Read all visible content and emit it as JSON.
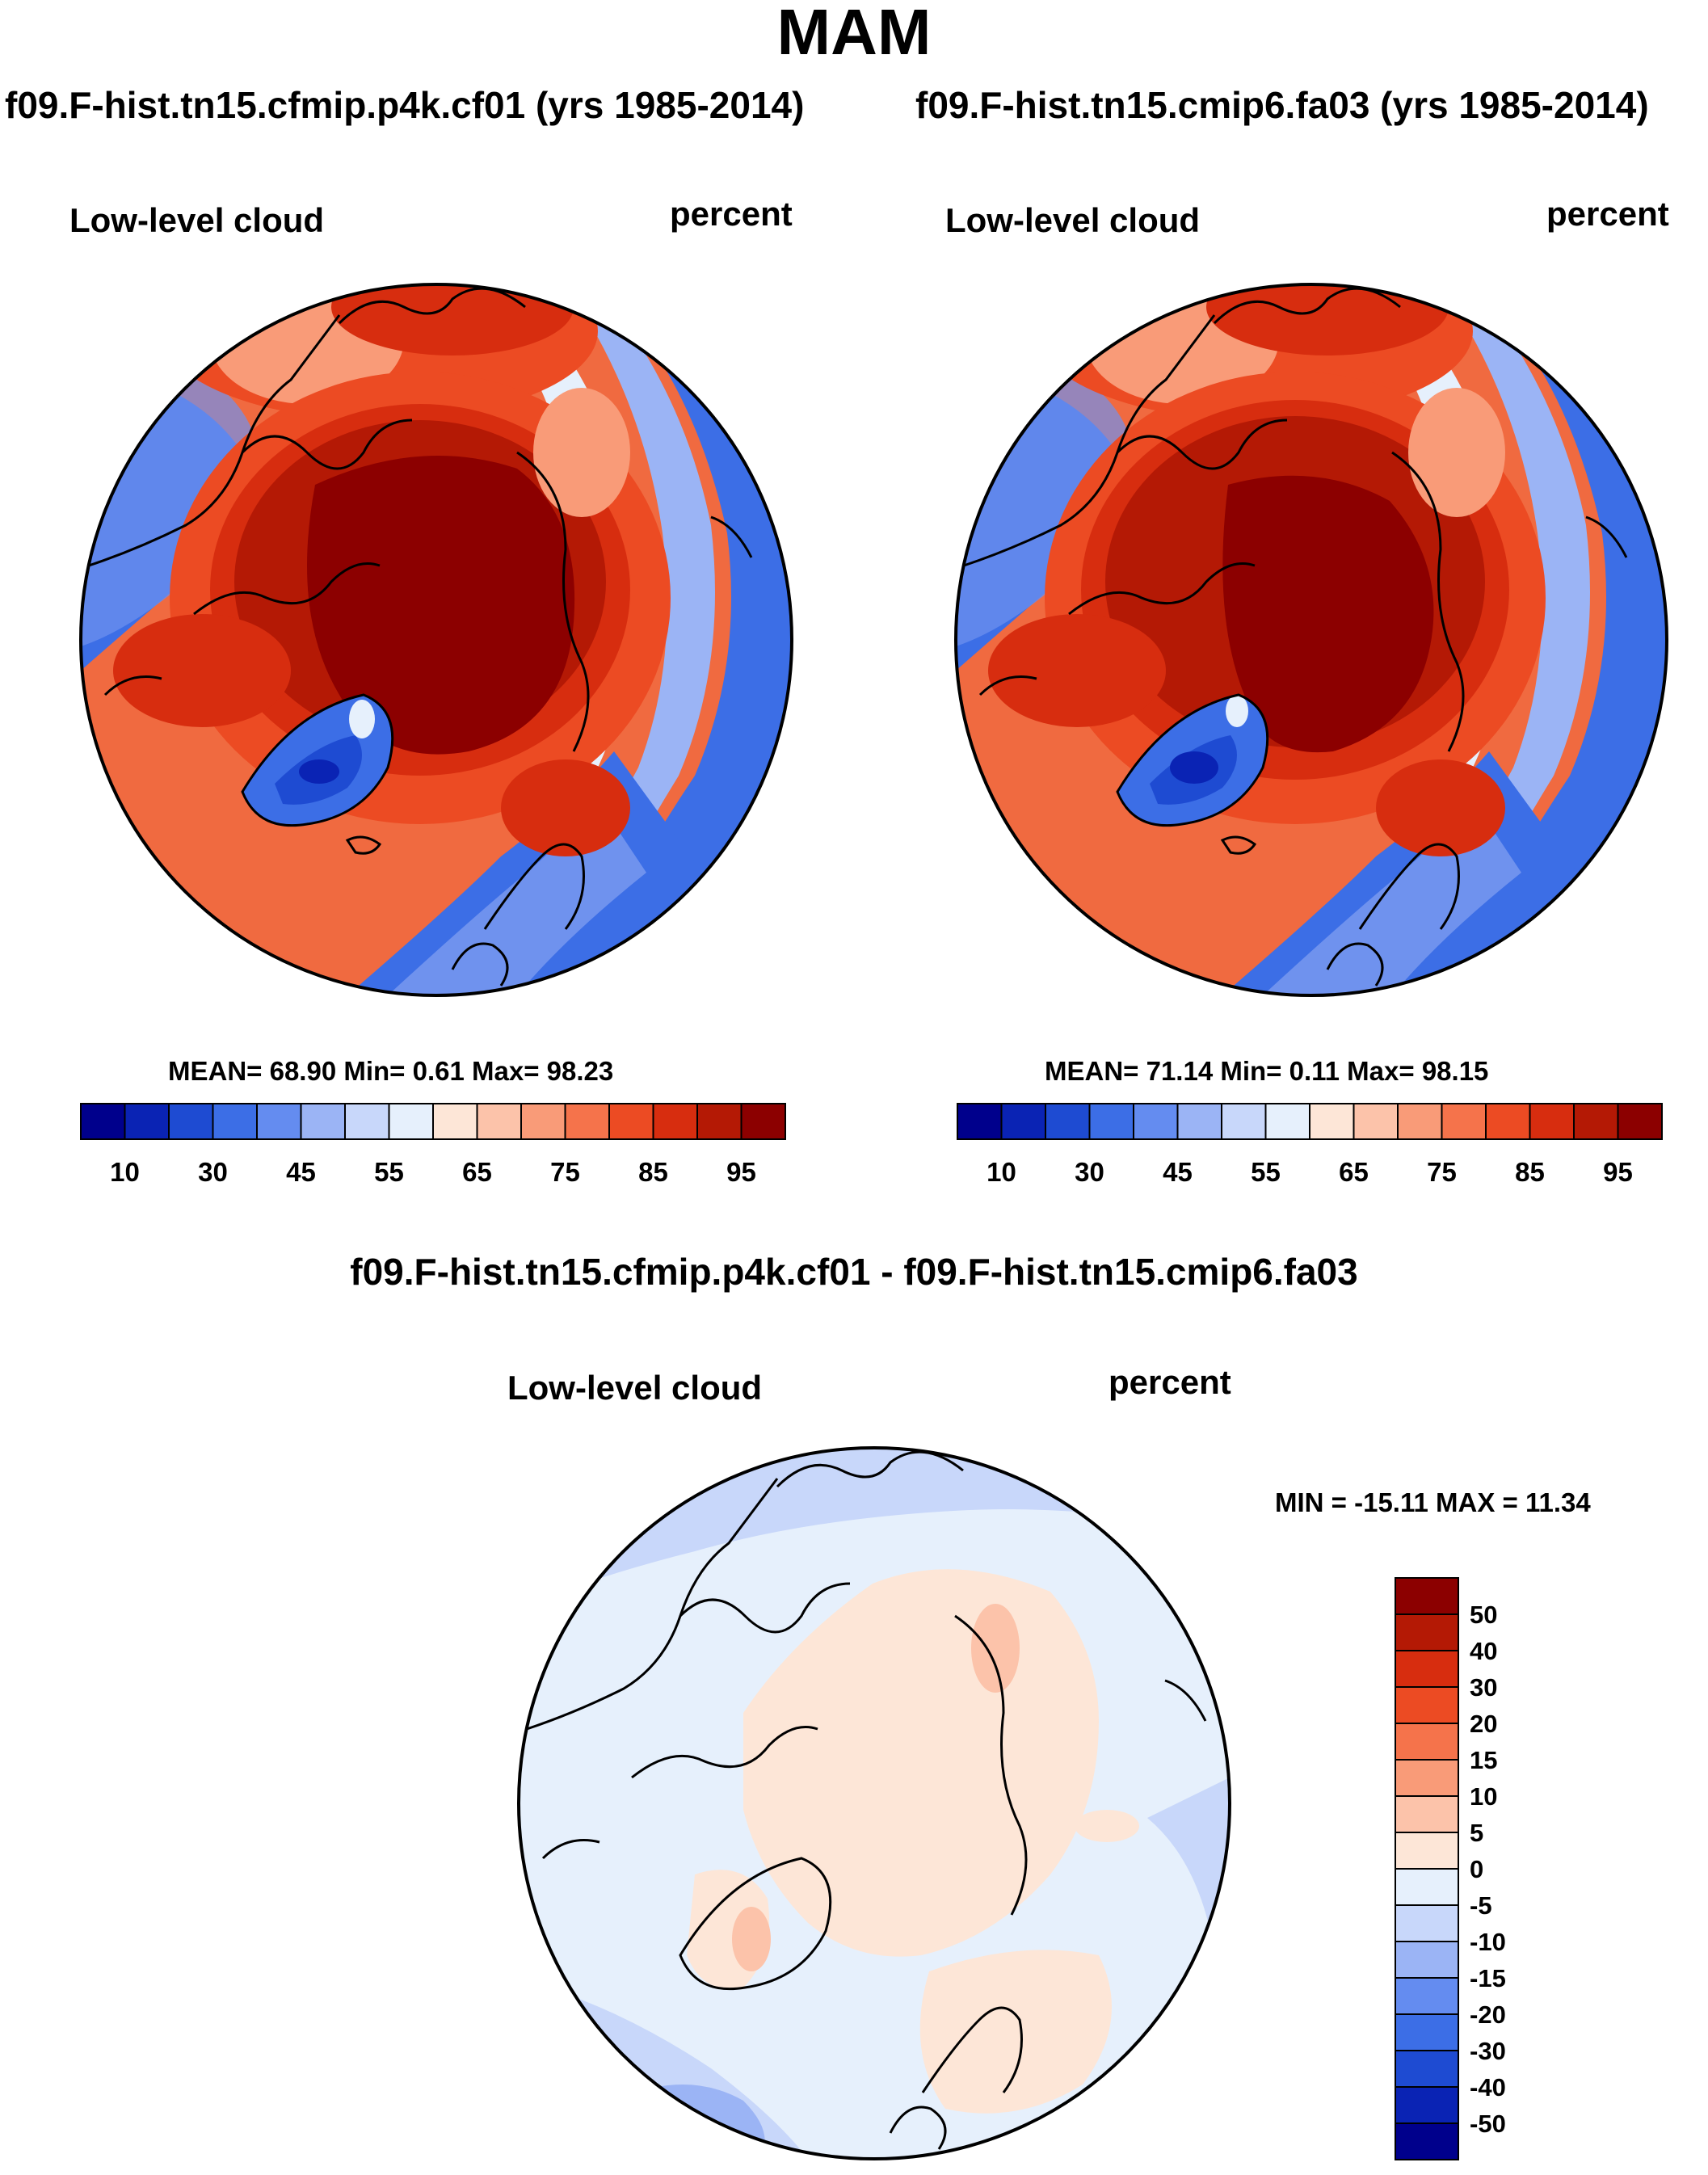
{
  "figure": {
    "title": "MAM",
    "diff_title": "f09.F-hist.tn15.cfmip.p4k.cf01 - f09.F-hist.tn15.cmip6.fa03"
  },
  "panels": [
    {
      "case_title": "f09.F-hist.tn15.cfmip.p4k.cf01 (yrs 1985-2014)",
      "left_label": "Low-level cloud",
      "right_label": "percent",
      "stats": "MEAN=  68.90  Min=   0.61  Max=  98.23"
    },
    {
      "case_title": "f09.F-hist.tn15.cmip6.fa03 (yrs 1985-2014)",
      "left_label": "Low-level cloud",
      "right_label": "percent",
      "stats": "MEAN=  71.14  Min=   0.11  Max=  98.15"
    },
    {
      "left_label": "Low-level cloud",
      "right_label": "percent",
      "stats": "MIN = -15.11 MAX =  11.34"
    }
  ],
  "chart_data": [
    {
      "type": "heatmap",
      "projection": "north polar stereographic",
      "title": "f09.F-hist.tn15.cfmip.p4k.cf01 (yrs 1985-2014)",
      "variable": "Low-level cloud",
      "units": "percent",
      "mean": 68.9,
      "min": 0.61,
      "max": 98.23,
      "colorbar_ticks": [
        "10",
        "30",
        "45",
        "55",
        "65",
        "75",
        "85",
        "95"
      ],
      "colorbar_colors": [
        "#00008c",
        "#0a23b4",
        "#1e4bd2",
        "#3c6ee6",
        "#648cf0",
        "#9bb4f5",
        "#c8d7fa",
        "#e6f0fc",
        "#fde6d7",
        "#fcc3aa",
        "#f99b78",
        "#f5734b",
        "#ec4b23",
        "#d72d0f",
        "#b41905",
        "#8c0000"
      ]
    },
    {
      "type": "heatmap",
      "projection": "north polar stereographic",
      "title": "f09.F-hist.tn15.cmip6.fa03 (yrs 1985-2014)",
      "variable": "Low-level cloud",
      "units": "percent",
      "mean": 71.14,
      "min": 0.11,
      "max": 98.15,
      "colorbar_ticks": [
        "10",
        "30",
        "45",
        "55",
        "65",
        "75",
        "85",
        "95"
      ],
      "colorbar_colors": [
        "#00008c",
        "#0a23b4",
        "#1e4bd2",
        "#3c6ee6",
        "#648cf0",
        "#9bb4f5",
        "#c8d7fa",
        "#e6f0fc",
        "#fde6d7",
        "#fcc3aa",
        "#f99b78",
        "#f5734b",
        "#ec4b23",
        "#d72d0f",
        "#b41905",
        "#8c0000"
      ]
    },
    {
      "type": "heatmap",
      "projection": "north polar stereographic",
      "title": "f09.F-hist.tn15.cfmip.p4k.cf01 - f09.F-hist.tn15.cmip6.fa03",
      "variable": "Low-level cloud",
      "units": "percent",
      "min": -15.11,
      "max": 11.34,
      "colorbar_ticks": [
        "50",
        "40",
        "30",
        "20",
        "15",
        "10",
        "5",
        "0",
        "-5",
        "-10",
        "-15",
        "-20",
        "-30",
        "-40",
        "-50"
      ],
      "colorbar_colors": [
        "#8c0000",
        "#b41905",
        "#d72d0f",
        "#ec4b23",
        "#f5734b",
        "#f99b78",
        "#fcc3aa",
        "#fde6d7",
        "#e6f0fc",
        "#c8d7fa",
        "#9bb4f5",
        "#648cf0",
        "#3c6ee6",
        "#1e4bd2",
        "#0a23b4",
        "#00008c"
      ]
    }
  ]
}
